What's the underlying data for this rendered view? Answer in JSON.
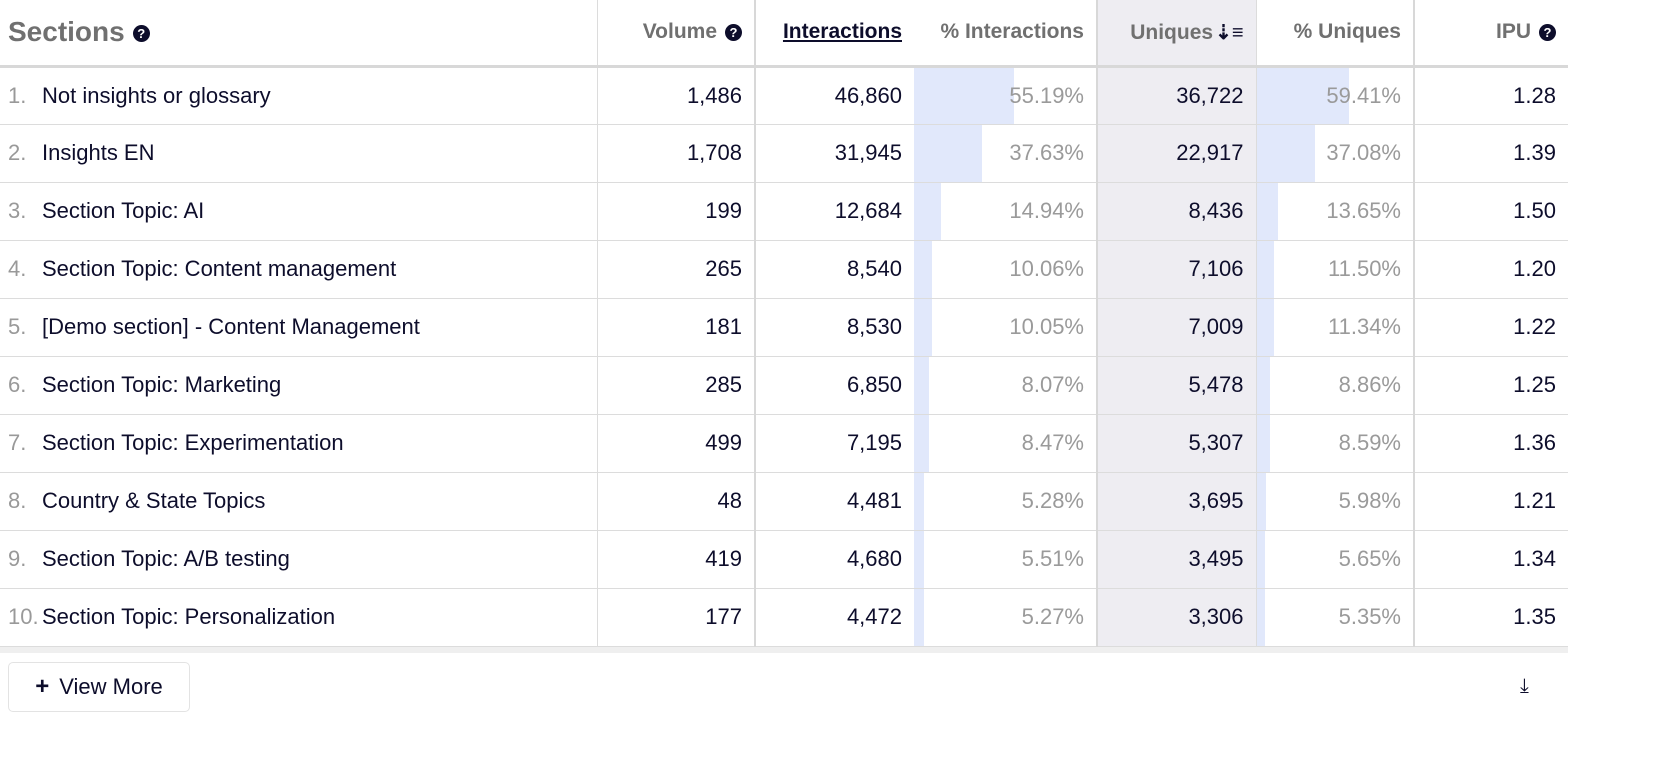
{
  "header": {
    "title": "Sections",
    "columns": [
      "Volume",
      "Interactions",
      "% Interactions",
      "Uniques",
      "% Uniques",
      "IPU"
    ]
  },
  "rows": [
    {
      "rank": "1.",
      "name": "Not insights or glossary",
      "volume": "1,486",
      "interactions": "46,860",
      "pct_interactions": "55.19%",
      "uniques": "36,722",
      "pct_uniques": "59.41%",
      "ipu": "1.28",
      "pi": 55.19,
      "pu": 59.41
    },
    {
      "rank": "2.",
      "name": "Insights EN",
      "volume": "1,708",
      "interactions": "31,945",
      "pct_interactions": "37.63%",
      "uniques": "22,917",
      "pct_uniques": "37.08%",
      "ipu": "1.39",
      "pi": 37.63,
      "pu": 37.08
    },
    {
      "rank": "3.",
      "name": "Section Topic: AI",
      "volume": "199",
      "interactions": "12,684",
      "pct_interactions": "14.94%",
      "uniques": "8,436",
      "pct_uniques": "13.65%",
      "ipu": "1.50",
      "pi": 14.94,
      "pu": 13.65
    },
    {
      "rank": "4.",
      "name": "Section Topic: Content management",
      "volume": "265",
      "interactions": "8,540",
      "pct_interactions": "10.06%",
      "uniques": "7,106",
      "pct_uniques": "11.50%",
      "ipu": "1.20",
      "pi": 10.06,
      "pu": 11.5
    },
    {
      "rank": "5.",
      "name": "[Demo section] - Content Management",
      "volume": "181",
      "interactions": "8,530",
      "pct_interactions": "10.05%",
      "uniques": "7,009",
      "pct_uniques": "11.34%",
      "ipu": "1.22",
      "pi": 10.05,
      "pu": 11.34
    },
    {
      "rank": "6.",
      "name": "Section Topic: Marketing",
      "volume": "285",
      "interactions": "6,850",
      "pct_interactions": "8.07%",
      "uniques": "5,478",
      "pct_uniques": "8.86%",
      "ipu": "1.25",
      "pi": 8.07,
      "pu": 8.86
    },
    {
      "rank": "7.",
      "name": "Section Topic: Experimentation",
      "volume": "499",
      "interactions": "7,195",
      "pct_interactions": "8.47%",
      "uniques": "5,307",
      "pct_uniques": "8.59%",
      "ipu": "1.36",
      "pi": 8.47,
      "pu": 8.59
    },
    {
      "rank": "8.",
      "name": "Country & State Topics",
      "volume": "48",
      "interactions": "4,481",
      "pct_interactions": "5.28%",
      "uniques": "3,695",
      "pct_uniques": "5.98%",
      "ipu": "1.21",
      "pi": 5.28,
      "pu": 5.98
    },
    {
      "rank": "9.",
      "name": "Section Topic: A/B testing",
      "volume": "419",
      "interactions": "4,680",
      "pct_interactions": "5.51%",
      "uniques": "3,495",
      "pct_uniques": "5.65%",
      "ipu": "1.34",
      "pi": 5.51,
      "pu": 5.65
    },
    {
      "rank": "10.",
      "name": "Section Topic: Personalization",
      "volume": "177",
      "interactions": "4,472",
      "pct_interactions": "5.27%",
      "uniques": "3,306",
      "pct_uniques": "5.35%",
      "ipu": "1.35",
      "pi": 5.27,
      "pu": 5.35
    }
  ],
  "footer": {
    "view_more": "View More"
  },
  "colors": {
    "bar": "#e1e8fb",
    "sorted_bg": "#eeedf2",
    "text": "#0d0d2b"
  }
}
